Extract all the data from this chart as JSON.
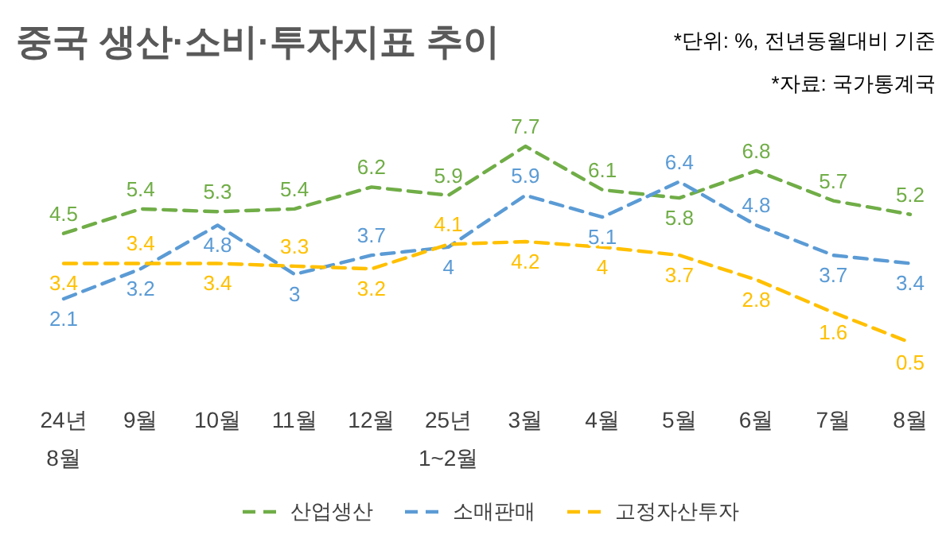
{
  "chart_data": {
    "type": "line",
    "title": "중국 생산·소비·투자지표 추이",
    "annotations": [
      "*단위: %, 전년동월대비 기준",
      "*자료: 국가통계국"
    ],
    "categories": [
      "24년\n8월",
      "9월",
      "10월",
      "11월",
      "12월",
      "25년\n1~2월",
      "3월",
      "4월",
      "5월",
      "6월",
      "7월",
      "8월"
    ],
    "series": [
      {
        "name": "산업생산",
        "color": "#70ad47",
        "values": [
          4.5,
          5.4,
          5.3,
          5.4,
          6.2,
          5.9,
          7.7,
          6.1,
          5.8,
          6.8,
          5.7,
          5.2
        ]
      },
      {
        "name": "소매판매",
        "color": "#5b9bd5",
        "values": [
          2.1,
          3.2,
          4.8,
          3,
          3.7,
          4,
          5.9,
          5.1,
          6.4,
          4.8,
          3.7,
          3.4
        ]
      },
      {
        "name": "고정자산투자",
        "color": "#ffc000",
        "values": [
          3.4,
          3.4,
          3.4,
          3.3,
          3.2,
          4.1,
          4.2,
          4,
          3.7,
          2.8,
          1.6,
          0.5
        ]
      }
    ],
    "data_labels": true,
    "line_style": "dashed",
    "marker": "none",
    "grid": false,
    "legend": "bottom"
  }
}
